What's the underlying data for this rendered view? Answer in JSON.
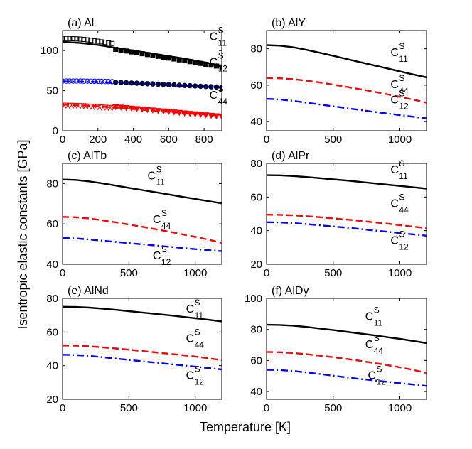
{
  "figure": {
    "ylabel": "Isentropic elastic constants [GPa]",
    "xlabel": "Temperature [K]"
  },
  "chart_data": [
    {
      "type": "line",
      "title": "(a) Al",
      "xlabel": "Temperature [K]",
      "ylabel": "Isentropic elastic constants [GPa]",
      "xlim": [
        0,
        900
      ],
      "ylim": [
        0,
        125
      ],
      "xticks": [
        "0",
        "200",
        "400",
        "600",
        "800"
      ],
      "yticks": [
        "0",
        "50",
        "100"
      ],
      "series": [
        {
          "name": "C11 calculated",
          "label_main": "C",
          "label_sup": "S",
          "label_sub": "11",
          "style": "solid",
          "color": "#000000",
          "x": [
            0,
            100,
            200,
            300,
            400,
            500,
            600,
            700,
            800,
            900
          ],
          "y": [
            111,
            109.5,
            107,
            103.5,
            100,
            96.5,
            93,
            89.5,
            85.5,
            81
          ]
        },
        {
          "name": "C12 calculated",
          "label_main": "C",
          "label_sup": "S",
          "label_sub": "12",
          "style": "dashdot",
          "color": "#0000ff",
          "x": [
            0,
            100,
            200,
            300,
            400,
            500,
            600,
            700,
            800,
            900
          ],
          "y": [
            61.5,
            61.3,
            60.8,
            60,
            59,
            57.8,
            56.8,
            55.8,
            54.8,
            53.8
          ]
        },
        {
          "name": "C44 calculated",
          "label_main": "C",
          "label_sup": "S",
          "label_sub": "44",
          "style": "dashed",
          "color": "#ff0000",
          "x": [
            0,
            100,
            200,
            300,
            400,
            500,
            600,
            700,
            800,
            900
          ],
          "y": [
            32.5,
            31.8,
            30.5,
            28.8,
            27,
            25.2,
            23.5,
            21.8,
            20.2,
            18.5
          ]
        },
        {
          "name": "C11 experiment (low T)",
          "marker": "open-square",
          "color": "#000000",
          "x": [
            0,
            20,
            40,
            60,
            80,
            100,
            120,
            140,
            160,
            180,
            200,
            220,
            240,
            260,
            280
          ],
          "y": [
            115,
            115,
            115,
            114.8,
            114.6,
            114.3,
            113.9,
            113.4,
            112.8,
            112.2,
            111.6,
            110.9,
            110.2,
            109.5,
            108.8
          ]
        },
        {
          "name": "C11 experiment (high T)",
          "marker": "filled-square",
          "color": "#000000",
          "x": [
            300,
            330,
            360,
            390,
            420,
            450,
            480,
            510,
            540,
            570,
            600,
            630,
            660,
            690,
            720,
            750,
            780,
            810,
            840,
            870,
            900
          ],
          "y": [
            101.5,
            100.5,
            99.4,
            98.3,
            97.2,
            96.1,
            95,
            93.9,
            92.8,
            91.7,
            90.6,
            89.5,
            88.4,
            87.3,
            86.2,
            85.1,
            84,
            82.9,
            81.8,
            80.7,
            79.6
          ]
        },
        {
          "name": "C12 experiment (low T)",
          "marker": "open-circle",
          "color": "#0000ff",
          "x": [
            0,
            20,
            40,
            60,
            80,
            100,
            120,
            140,
            160,
            180,
            200,
            220,
            240,
            260,
            280
          ],
          "y": [
            62,
            62,
            62,
            62,
            62,
            62,
            61.9,
            61.9,
            61.8,
            61.8,
            61.7,
            61.6,
            61.5,
            61.4,
            61.3
          ]
        },
        {
          "name": "C12 experiment (high T)",
          "marker": "filled-circle",
          "color": "#00004d",
          "x": [
            300,
            330,
            360,
            390,
            420,
            450,
            480,
            510,
            540,
            570,
            600,
            630,
            660,
            690,
            720,
            750,
            780,
            810,
            840,
            870,
            900
          ],
          "y": [
            60.5,
            60.2,
            59.9,
            59.6,
            59.3,
            59,
            58.7,
            58.4,
            58.1,
            57.8,
            57.5,
            57.2,
            56.8,
            56.5,
            56.2,
            55.8,
            55.5,
            55.2,
            54.9,
            54.6,
            54.3
          ]
        },
        {
          "name": "C44 experiment (low T)",
          "marker": "open-triangle-down",
          "color": "#ff0000",
          "x": [
            0,
            20,
            40,
            60,
            80,
            100,
            120,
            140,
            160,
            180,
            200,
            220,
            240,
            260,
            280
          ],
          "y": [
            31.8,
            31.8,
            31.7,
            31.6,
            31.5,
            31.3,
            31.1,
            30.8,
            30.5,
            30.2,
            29.9,
            29.6,
            29.3,
            29,
            28.7
          ]
        },
        {
          "name": "C44 experiment (high T)",
          "marker": "filled-triangle-down",
          "color": "#ff0000",
          "x": [
            300,
            330,
            360,
            390,
            420,
            450,
            480,
            510,
            540,
            570,
            600,
            630,
            660,
            690,
            720,
            750,
            780,
            810,
            840,
            870,
            900
          ],
          "y": [
            30,
            29.4,
            28.8,
            28.2,
            27.6,
            27,
            26.4,
            25.8,
            25.2,
            24.6,
            24,
            23.4,
            22.8,
            22.2,
            21.6,
            21,
            20.4,
            19.8,
            19.2,
            18.6,
            18
          ]
        }
      ]
    },
    {
      "type": "line",
      "title": "(b) AlY",
      "xlim": [
        0,
        1200
      ],
      "ylim": [
        35,
        90
      ],
      "xticks": [
        "0",
        "500",
        "1000"
      ],
      "yticks": [
        "40",
        "60",
        "80"
      ],
      "series": [
        {
          "name": "C11",
          "label_main": "C",
          "label_sup": "S",
          "label_sub": "11",
          "style": "solid",
          "color": "#000000",
          "x": [
            0,
            100,
            200,
            300,
            400,
            500,
            600,
            700,
            800,
            900,
            1000,
            1100,
            1200
          ],
          "y": [
            82,
            81.7,
            80.8,
            79.4,
            77.8,
            76.1,
            74.4,
            72.7,
            71,
            69.3,
            67.6,
            65.9,
            64.3
          ]
        },
        {
          "name": "C44",
          "label_main": "C",
          "label_sup": "S",
          "label_sub": "44",
          "style": "dashed",
          "color": "#ff0000",
          "x": [
            0,
            100,
            200,
            300,
            400,
            500,
            600,
            700,
            800,
            900,
            1000,
            1100,
            1200
          ],
          "y": [
            64,
            63.8,
            63.3,
            62.5,
            61.5,
            60.3,
            59.1,
            57.8,
            56.5,
            55.1,
            53.6,
            52.1,
            50.4
          ]
        },
        {
          "name": "C12",
          "label_main": "C",
          "label_sup": "S",
          "label_sub": "12",
          "style": "dashdot",
          "color": "#0000ff",
          "x": [
            0,
            100,
            200,
            300,
            400,
            500,
            600,
            700,
            800,
            900,
            1000,
            1100,
            1200
          ],
          "y": [
            52.5,
            52.2,
            51.4,
            50.4,
            49.4,
            48.4,
            47.4,
            46.4,
            45.4,
            44.5,
            43.6,
            42.7,
            41.8
          ]
        }
      ]
    },
    {
      "type": "line",
      "title": "(c) AlTb",
      "xlim": [
        0,
        1200
      ],
      "ylim": [
        40,
        90
      ],
      "xticks": [
        "0",
        "500",
        "1000"
      ],
      "yticks": [
        "40",
        "60",
        "80"
      ],
      "series": [
        {
          "name": "C11",
          "label_main": "C",
          "label_sup": "S",
          "label_sub": "11",
          "style": "solid",
          "color": "#000000",
          "x": [
            0,
            100,
            200,
            300,
            400,
            500,
            600,
            700,
            800,
            900,
            1000,
            1100,
            1200
          ],
          "y": [
            82,
            81.8,
            81.1,
            80.1,
            79,
            77.9,
            76.8,
            75.7,
            74.6,
            73.5,
            72.4,
            71.3,
            70.2
          ]
        },
        {
          "name": "C44",
          "label_main": "C",
          "label_sup": "S",
          "label_sub": "44",
          "style": "dashed",
          "color": "#ff0000",
          "x": [
            0,
            100,
            200,
            300,
            400,
            500,
            600,
            700,
            800,
            900,
            1000,
            1100,
            1200
          ],
          "y": [
            63.5,
            63.3,
            62.7,
            61.8,
            60.8,
            59.7,
            58.6,
            57.4,
            56.2,
            54.9,
            53.6,
            52.2,
            50.6
          ]
        },
        {
          "name": "C12",
          "label_main": "C",
          "label_sup": "S",
          "label_sub": "12",
          "style": "dashdot",
          "color": "#0000ff",
          "x": [
            0,
            100,
            200,
            300,
            400,
            500,
            600,
            700,
            800,
            900,
            1000,
            1100,
            1200
          ],
          "y": [
            53,
            52.8,
            52.3,
            51.7,
            51.1,
            50.5,
            49.9,
            49.3,
            48.7,
            48.1,
            47.5,
            47,
            46.5
          ]
        }
      ]
    },
    {
      "type": "line",
      "title": "(d) AlPr",
      "xlim": [
        0,
        1200
      ],
      "ylim": [
        20,
        80
      ],
      "xticks": [
        "0",
        "500",
        "1000"
      ],
      "yticks": [
        "20",
        "40",
        "60",
        "80"
      ],
      "series": [
        {
          "name": "C11",
          "label_main": "C",
          "label_sup": "S",
          "label_sub": "11",
          "style": "solid",
          "color": "#000000",
          "x": [
            0,
            100,
            200,
            300,
            400,
            500,
            600,
            700,
            800,
            900,
            1000,
            1100,
            1200
          ],
          "y": [
            73,
            72.9,
            72.5,
            71.9,
            71.2,
            70.5,
            69.8,
            69,
            68.2,
            67.4,
            66.6,
            65.8,
            65
          ]
        },
        {
          "name": "C44",
          "label_main": "C",
          "label_sup": "S",
          "label_sub": "44",
          "style": "dashed",
          "color": "#ff0000",
          "x": [
            0,
            100,
            200,
            300,
            400,
            500,
            600,
            700,
            800,
            900,
            1000,
            1100,
            1200
          ],
          "y": [
            49.5,
            49.4,
            49.1,
            48.6,
            48,
            47.3,
            46.6,
            45.8,
            45,
            44.2,
            43.3,
            42.4,
            41.5
          ]
        },
        {
          "name": "C12",
          "label_main": "C",
          "label_sup": "S",
          "label_sub": "12",
          "style": "dashdot",
          "color": "#0000ff",
          "x": [
            0,
            100,
            200,
            300,
            400,
            500,
            600,
            700,
            800,
            900,
            1000,
            1100,
            1200
          ],
          "y": [
            45,
            44.9,
            44.5,
            43.9,
            43.2,
            42.5,
            41.8,
            41,
            40.2,
            39.4,
            38.6,
            37.8,
            37
          ]
        }
      ]
    },
    {
      "type": "line",
      "title": "(e) AlNd",
      "xlim": [
        0,
        1200
      ],
      "ylim": [
        20,
        80
      ],
      "xticks": [
        "0",
        "500",
        "1000"
      ],
      "yticks": [
        "20",
        "40",
        "60",
        "80"
      ],
      "series": [
        {
          "name": "C11",
          "label_main": "C",
          "label_sup": "S",
          "label_sub": "11",
          "style": "solid",
          "color": "#000000",
          "x": [
            0,
            100,
            200,
            300,
            400,
            500,
            600,
            700,
            800,
            900,
            1000,
            1100,
            1200
          ],
          "y": [
            75,
            74.9,
            74.5,
            73.9,
            73.2,
            72.4,
            71.6,
            70.8,
            70,
            69.1,
            68.2,
            67.3,
            66.3
          ]
        },
        {
          "name": "C44",
          "label_main": "C",
          "label_sup": "S",
          "label_sub": "44",
          "style": "dashed",
          "color": "#ff0000",
          "x": [
            0,
            100,
            200,
            300,
            400,
            500,
            600,
            700,
            800,
            900,
            1000,
            1100,
            1200
          ],
          "y": [
            52,
            51.9,
            51.5,
            50.9,
            50.2,
            49.5,
            48.7,
            47.9,
            47.1,
            46.3,
            45.4,
            44.4,
            43.3
          ]
        },
        {
          "name": "C12",
          "label_main": "C",
          "label_sup": "S",
          "label_sub": "12",
          "style": "dashdot",
          "color": "#0000ff",
          "x": [
            0,
            100,
            200,
            300,
            400,
            500,
            600,
            700,
            800,
            900,
            1000,
            1100,
            1200
          ],
          "y": [
            46.5,
            46.3,
            45.8,
            45,
            44.2,
            43.4,
            42.6,
            41.8,
            41,
            40.2,
            39.4,
            38.6,
            37.8
          ]
        }
      ]
    },
    {
      "type": "line",
      "title": "(f) AlDy",
      "xlim": [
        0,
        1200
      ],
      "ylim": [
        35,
        100
      ],
      "xticks": [
        "0",
        "500",
        "1000"
      ],
      "yticks": [
        "40",
        "60",
        "80",
        "100"
      ],
      "series": [
        {
          "name": "C11",
          "label_main": "C",
          "label_sup": "S",
          "label_sub": "11",
          "style": "solid",
          "color": "#000000",
          "x": [
            0,
            100,
            200,
            300,
            400,
            500,
            600,
            700,
            800,
            900,
            1000,
            1100,
            1200
          ],
          "y": [
            83,
            82.9,
            82.4,
            81.6,
            80.6,
            79.6,
            78.5,
            77.4,
            76.3,
            75.1,
            73.9,
            72.6,
            71.2
          ]
        },
        {
          "name": "C44",
          "label_main": "C",
          "label_sup": "S",
          "label_sub": "44",
          "style": "dashed",
          "color": "#ff0000",
          "x": [
            0,
            100,
            200,
            300,
            400,
            500,
            600,
            700,
            800,
            900,
            1000,
            1100,
            1200
          ],
          "y": [
            65.5,
            65.3,
            64.8,
            64,
            63.1,
            62.1,
            61,
            59.8,
            58.5,
            57.1,
            55.6,
            53.9,
            52
          ]
        },
        {
          "name": "C12",
          "label_main": "C",
          "label_sup": "S",
          "label_sub": "12",
          "style": "dashdot",
          "color": "#0000ff",
          "x": [
            0,
            100,
            200,
            300,
            400,
            500,
            600,
            700,
            800,
            900,
            1000,
            1100,
            1200
          ],
          "y": [
            54,
            53.8,
            53.2,
            52.3,
            51.3,
            50.2,
            49.1,
            48.1,
            47.2,
            46.3,
            45.4,
            44.5,
            43.6
          ]
        }
      ]
    }
  ]
}
